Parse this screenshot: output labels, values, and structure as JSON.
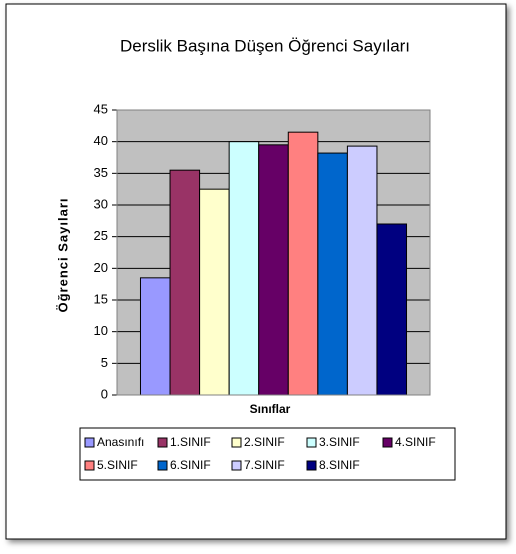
{
  "chart_data": {
    "type": "bar",
    "title": "Derslik Başına Düşen Öğrenci Sayıları",
    "x_label": "Sınıflar",
    "y_label": "Öğrenci Sayıları",
    "categories": [
      null
    ],
    "series": [
      {
        "name": "Anasınıfı",
        "color": "#9999ff",
        "values": [
          18.5
        ]
      },
      {
        "name": "1.SINIF",
        "color": "#993366",
        "values": [
          35.5
        ]
      },
      {
        "name": "2.SINIF",
        "color": "#ffffcc",
        "values": [
          32.5
        ]
      },
      {
        "name": "3.SINIF",
        "color": "#ccffff",
        "values": [
          40
        ]
      },
      {
        "name": "4.SINIF",
        "color": "#660066",
        "values": [
          39.5
        ]
      },
      {
        "name": "5.SINIF",
        "color": "#ff8080",
        "values": [
          41.5
        ]
      },
      {
        "name": "6.SINIF",
        "color": "#0066cc",
        "values": [
          38.2
        ]
      },
      {
        "name": "7.SINIF",
        "color": "#ccccff",
        "values": [
          39.3
        ]
      },
      {
        "name": "8.SINIF",
        "color": "#000080",
        "values": [
          27
        ]
      }
    ],
    "ylim": [
      0,
      45
    ],
    "yticks": [
      0,
      5,
      10,
      15,
      20,
      25,
      30,
      35,
      40,
      45
    ],
    "grid": true,
    "plot_background": "#c0c0c0",
    "legend": "bottom"
  }
}
